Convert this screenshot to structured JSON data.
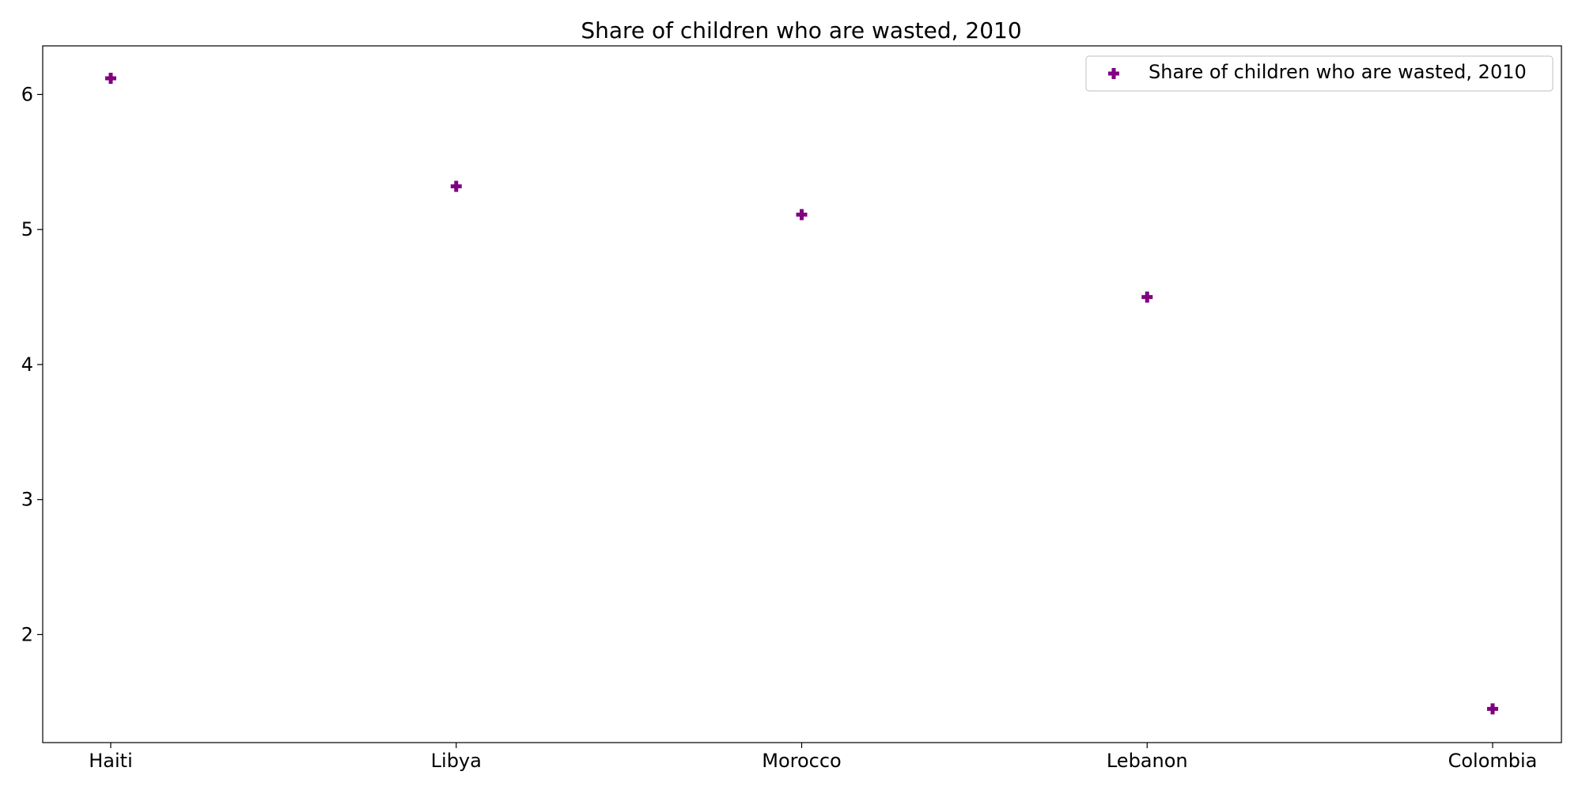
{
  "chart_data": {
    "type": "scatter",
    "title": "Share of children who are wasted, 2010",
    "xlabel": "",
    "ylabel": "",
    "categories": [
      "Haiti",
      "Libya",
      "Morocco",
      "Lebanon",
      "Colombia"
    ],
    "series": [
      {
        "name": "Share of children who are wasted, 2010",
        "values": [
          6.12,
          5.32,
          5.11,
          4.5,
          1.45
        ],
        "color": "#800080",
        "marker": "plus-filled"
      }
    ],
    "ylim": [
      1.2,
      6.36
    ],
    "yticks": [
      2,
      3,
      4,
      5,
      6
    ],
    "grid": false,
    "legend_position": "top-right"
  }
}
